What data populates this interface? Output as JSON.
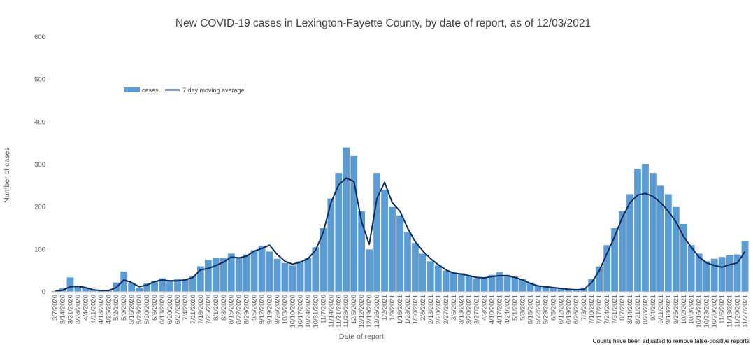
{
  "chart_data": {
    "type": "bar",
    "title": "New COVID-19 cases in Lexington-Fayette County, by date of report, as of 12/03/2021",
    "xlabel": "Date of report",
    "ylabel": "Number of cases",
    "ylim": [
      0,
      600
    ],
    "yticks": [
      "0",
      "100",
      "200",
      "300",
      "400",
      "500",
      "600"
    ],
    "grid": false,
    "legend_position": "top-left",
    "footnote": "Counts have been adjusted to remove false-positive reports",
    "colors": {
      "cases": "#5b9bd5",
      "moving_average": "#0d2a5c"
    },
    "x_tick_labels": [
      "3/7/2020",
      "3/14/2020",
      "3/21/2020",
      "3/28/2020",
      "4/4/2020",
      "4/11/2020",
      "4/18/2020",
      "4/25/2020",
      "5/2/2020",
      "5/9/2020",
      "5/16/2020",
      "5/23/2020",
      "5/30/2020",
      "6/6/2020",
      "6/13/2020",
      "6/20/2020",
      "6/27/2020",
      "7/4/2020",
      "7/11/2020",
      "7/18/2020",
      "7/25/2020",
      "8/1/2020",
      "8/8/2020",
      "8/15/2020",
      "8/22/2020",
      "8/29/2020",
      "9/5/2020",
      "9/12/2020",
      "9/19/2020",
      "9/26/2020",
      "10/3/2020",
      "10/10/2020",
      "10/17/2020",
      "10/24/2020",
      "10/31/2020",
      "11/7/2020",
      "11/14/2020",
      "11/21/2020",
      "11/28/2020",
      "12/5/2020",
      "12/12/2020",
      "12/19/2020",
      "12/26/2020",
      "1/2/2021",
      "1/9/2021",
      "1/16/2021",
      "1/23/2021",
      "1/30/2021",
      "2/6/2021",
      "2/13/2021",
      "2/20/2021",
      "2/27/2021",
      "3/6/2021",
      "3/13/2021",
      "3/20/2021",
      "3/27/2021",
      "4/3/2021",
      "4/10/2021",
      "4/17/2021",
      "4/24/2021",
      "5/1/2021",
      "5/8/2021",
      "5/15/2021",
      "5/22/2021",
      "5/29/2021",
      "6/5/2021",
      "6/12/2021",
      "6/19/2021",
      "6/26/2021",
      "7/3/2021",
      "7/10/2021",
      "7/17/2021",
      "7/24/2021",
      "7/31/2021",
      "8/7/2021",
      "8/14/2021",
      "8/21/2021",
      "8/28/2021",
      "9/4/2021",
      "9/11/2021",
      "9/18/2021",
      "9/25/2021",
      "10/2/2021",
      "10/9/2021",
      "10/16/2021",
      "10/23/2021",
      "10/30/2021",
      "11/6/2021",
      "11/13/2021",
      "11/20/2021",
      "11/27/2021"
    ],
    "series": [
      {
        "name": "cases",
        "kind": "bar",
        "values": [
          2,
          8,
          34,
          12,
          10,
          4,
          4,
          4,
          22,
          48,
          20,
          10,
          20,
          26,
          32,
          28,
          30,
          30,
          38,
          60,
          75,
          80,
          80,
          90,
          80,
          88,
          98,
          108,
          95,
          78,
          68,
          62,
          72,
          80,
          105,
          150,
          220,
          280,
          340,
          320,
          190,
          100,
          280,
          240,
          200,
          180,
          140,
          115,
          90,
          72,
          62,
          50,
          46,
          44,
          38,
          32,
          34,
          40,
          46,
          40,
          36,
          30,
          22,
          15,
          12,
          10,
          8,
          6,
          6,
          10,
          30,
          60,
          110,
          150,
          190,
          230,
          290,
          300,
          280,
          250,
          230,
          200,
          160,
          110,
          90,
          72,
          78,
          82,
          86,
          88,
          120
        ]
      },
      {
        "name": "7 day moving average",
        "kind": "line",
        "values": [
          1,
          4,
          12,
          13,
          10,
          5,
          3,
          3,
          10,
          28,
          22,
          12,
          16,
          24,
          28,
          26,
          26,
          28,
          34,
          52,
          55,
          62,
          70,
          82,
          80,
          84,
          96,
          102,
          110,
          88,
          72,
          65,
          70,
          78,
          98,
          140,
          210,
          252,
          268,
          260,
          165,
          112,
          220,
          258,
          210,
          190,
          150,
          118,
          96,
          78,
          64,
          52,
          44,
          42,
          38,
          34,
          33,
          36,
          38,
          38,
          34,
          28,
          20,
          14,
          12,
          10,
          8,
          6,
          5,
          6,
          22,
          50,
          90,
          130,
          175,
          210,
          228,
          232,
          225,
          210,
          190,
          165,
          130,
          105,
          82,
          68,
          62,
          58,
          64,
          68,
          95
        ]
      }
    ]
  }
}
